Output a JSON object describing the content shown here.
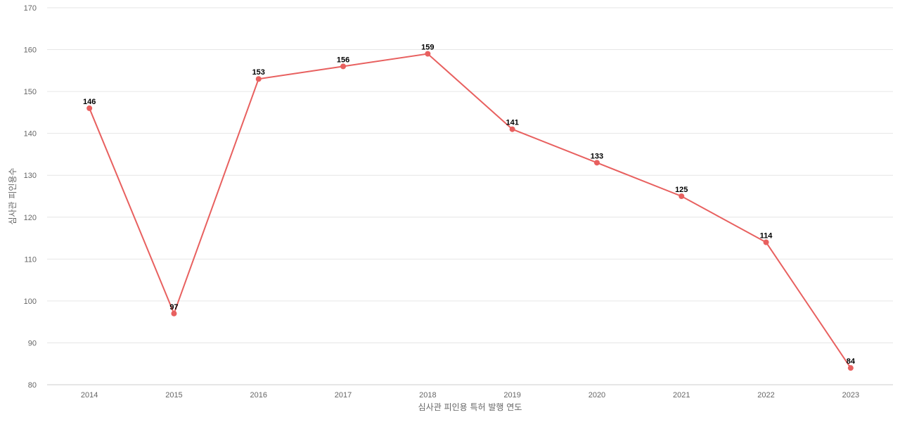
{
  "chart_data": {
    "type": "line",
    "title": "",
    "xlabel": "심사관 피인용 특허 발행 연도",
    "ylabel": "심사관 피인용수",
    "categories": [
      "2014",
      "2015",
      "2016",
      "2017",
      "2018",
      "2019",
      "2020",
      "2021",
      "2022",
      "2023"
    ],
    "series": [
      {
        "values": [
          146,
          97,
          153,
          156,
          159,
          141,
          133,
          125,
          114,
          84
        ],
        "color": "#e8605f"
      }
    ],
    "ylim": [
      80,
      170
    ],
    "yticks": [
      80,
      90,
      100,
      110,
      120,
      130,
      140,
      150,
      160,
      170
    ],
    "grid": true,
    "legend": "none",
    "data_labels": true
  }
}
